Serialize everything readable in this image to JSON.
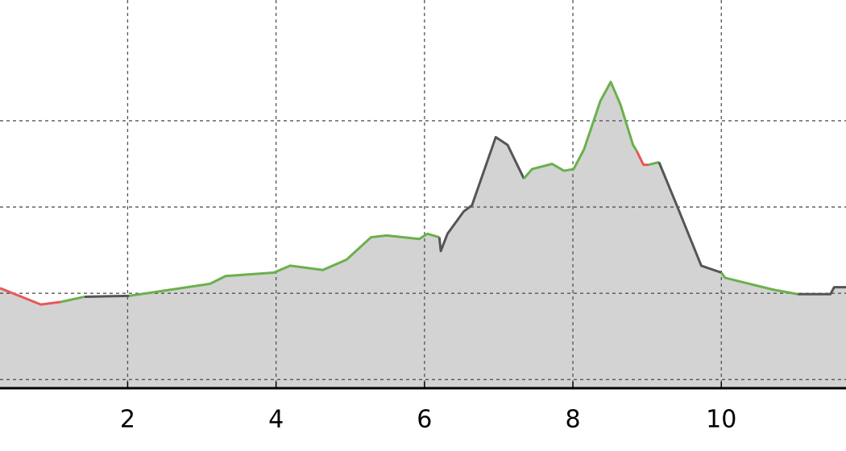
{
  "chart_data": {
    "type": "area",
    "xlim": [
      0.28,
      11.68
    ],
    "xticks": [
      2,
      4,
      6,
      8,
      10
    ],
    "ylim": [
      90,
      540
    ],
    "yticks": [
      100,
      200,
      300,
      400
    ],
    "grid": true,
    "fill_color": "#d3d3d3",
    "series": [
      {
        "color": "#e8575a",
        "x": [
          0.28,
          0.83,
          1.1
        ],
        "values": [
          206,
          187,
          190
        ]
      },
      {
        "color": "#6ab04c",
        "x": [
          1.1,
          1.42
        ],
        "values": [
          190,
          196
        ]
      },
      {
        "color": "#555555",
        "x": [
          1.42,
          2.02
        ],
        "values": [
          196,
          197
        ]
      },
      {
        "color": "#6ab04c",
        "x": [
          2.02,
          3.11,
          3.32,
          3.97,
          4.19,
          4.63,
          4.95,
          5.28,
          5.49,
          5.93,
          6.04,
          6.2
        ],
        "values": [
          197,
          211,
          220,
          224,
          232,
          227,
          239,
          265,
          267,
          263,
          269,
          265
        ]
      },
      {
        "color": "#555555",
        "x": [
          6.2,
          6.22,
          6.31,
          6.53,
          6.64,
          6.96,
          7.12,
          7.34
        ],
        "values": [
          265,
          249,
          269,
          295,
          302,
          381,
          372,
          333
        ]
      },
      {
        "color": "#6ab04c",
        "x": [
          7.34,
          7.45,
          7.72,
          7.88,
          8.01,
          8.15,
          8.37,
          8.51,
          8.64,
          8.81,
          8.86
        ],
        "values": [
          333,
          344,
          350,
          342,
          344,
          367,
          423,
          445,
          419,
          372,
          365
        ]
      },
      {
        "color": "#e8575a",
        "x": [
          8.86,
          8.95,
          9.02
        ],
        "values": [
          365,
          349,
          349
        ]
      },
      {
        "color": "#6ab04c",
        "x": [
          9.02,
          9.16
        ],
        "values": [
          349,
          352
        ]
      },
      {
        "color": "#555555",
        "x": [
          9.16,
          9.4,
          9.73,
          10.0
        ],
        "values": [
          352,
          302,
          232,
          224
        ]
      },
      {
        "color": "#6ab04c",
        "x": [
          10.0,
          10.05,
          10.38,
          10.71,
          11.03
        ],
        "values": [
          224,
          218,
          211,
          204,
          199
        ]
      },
      {
        "color": "#555555",
        "x": [
          11.03,
          11.47,
          11.52,
          11.68
        ],
        "values": [
          199,
          199,
          207,
          207
        ]
      }
    ]
  }
}
